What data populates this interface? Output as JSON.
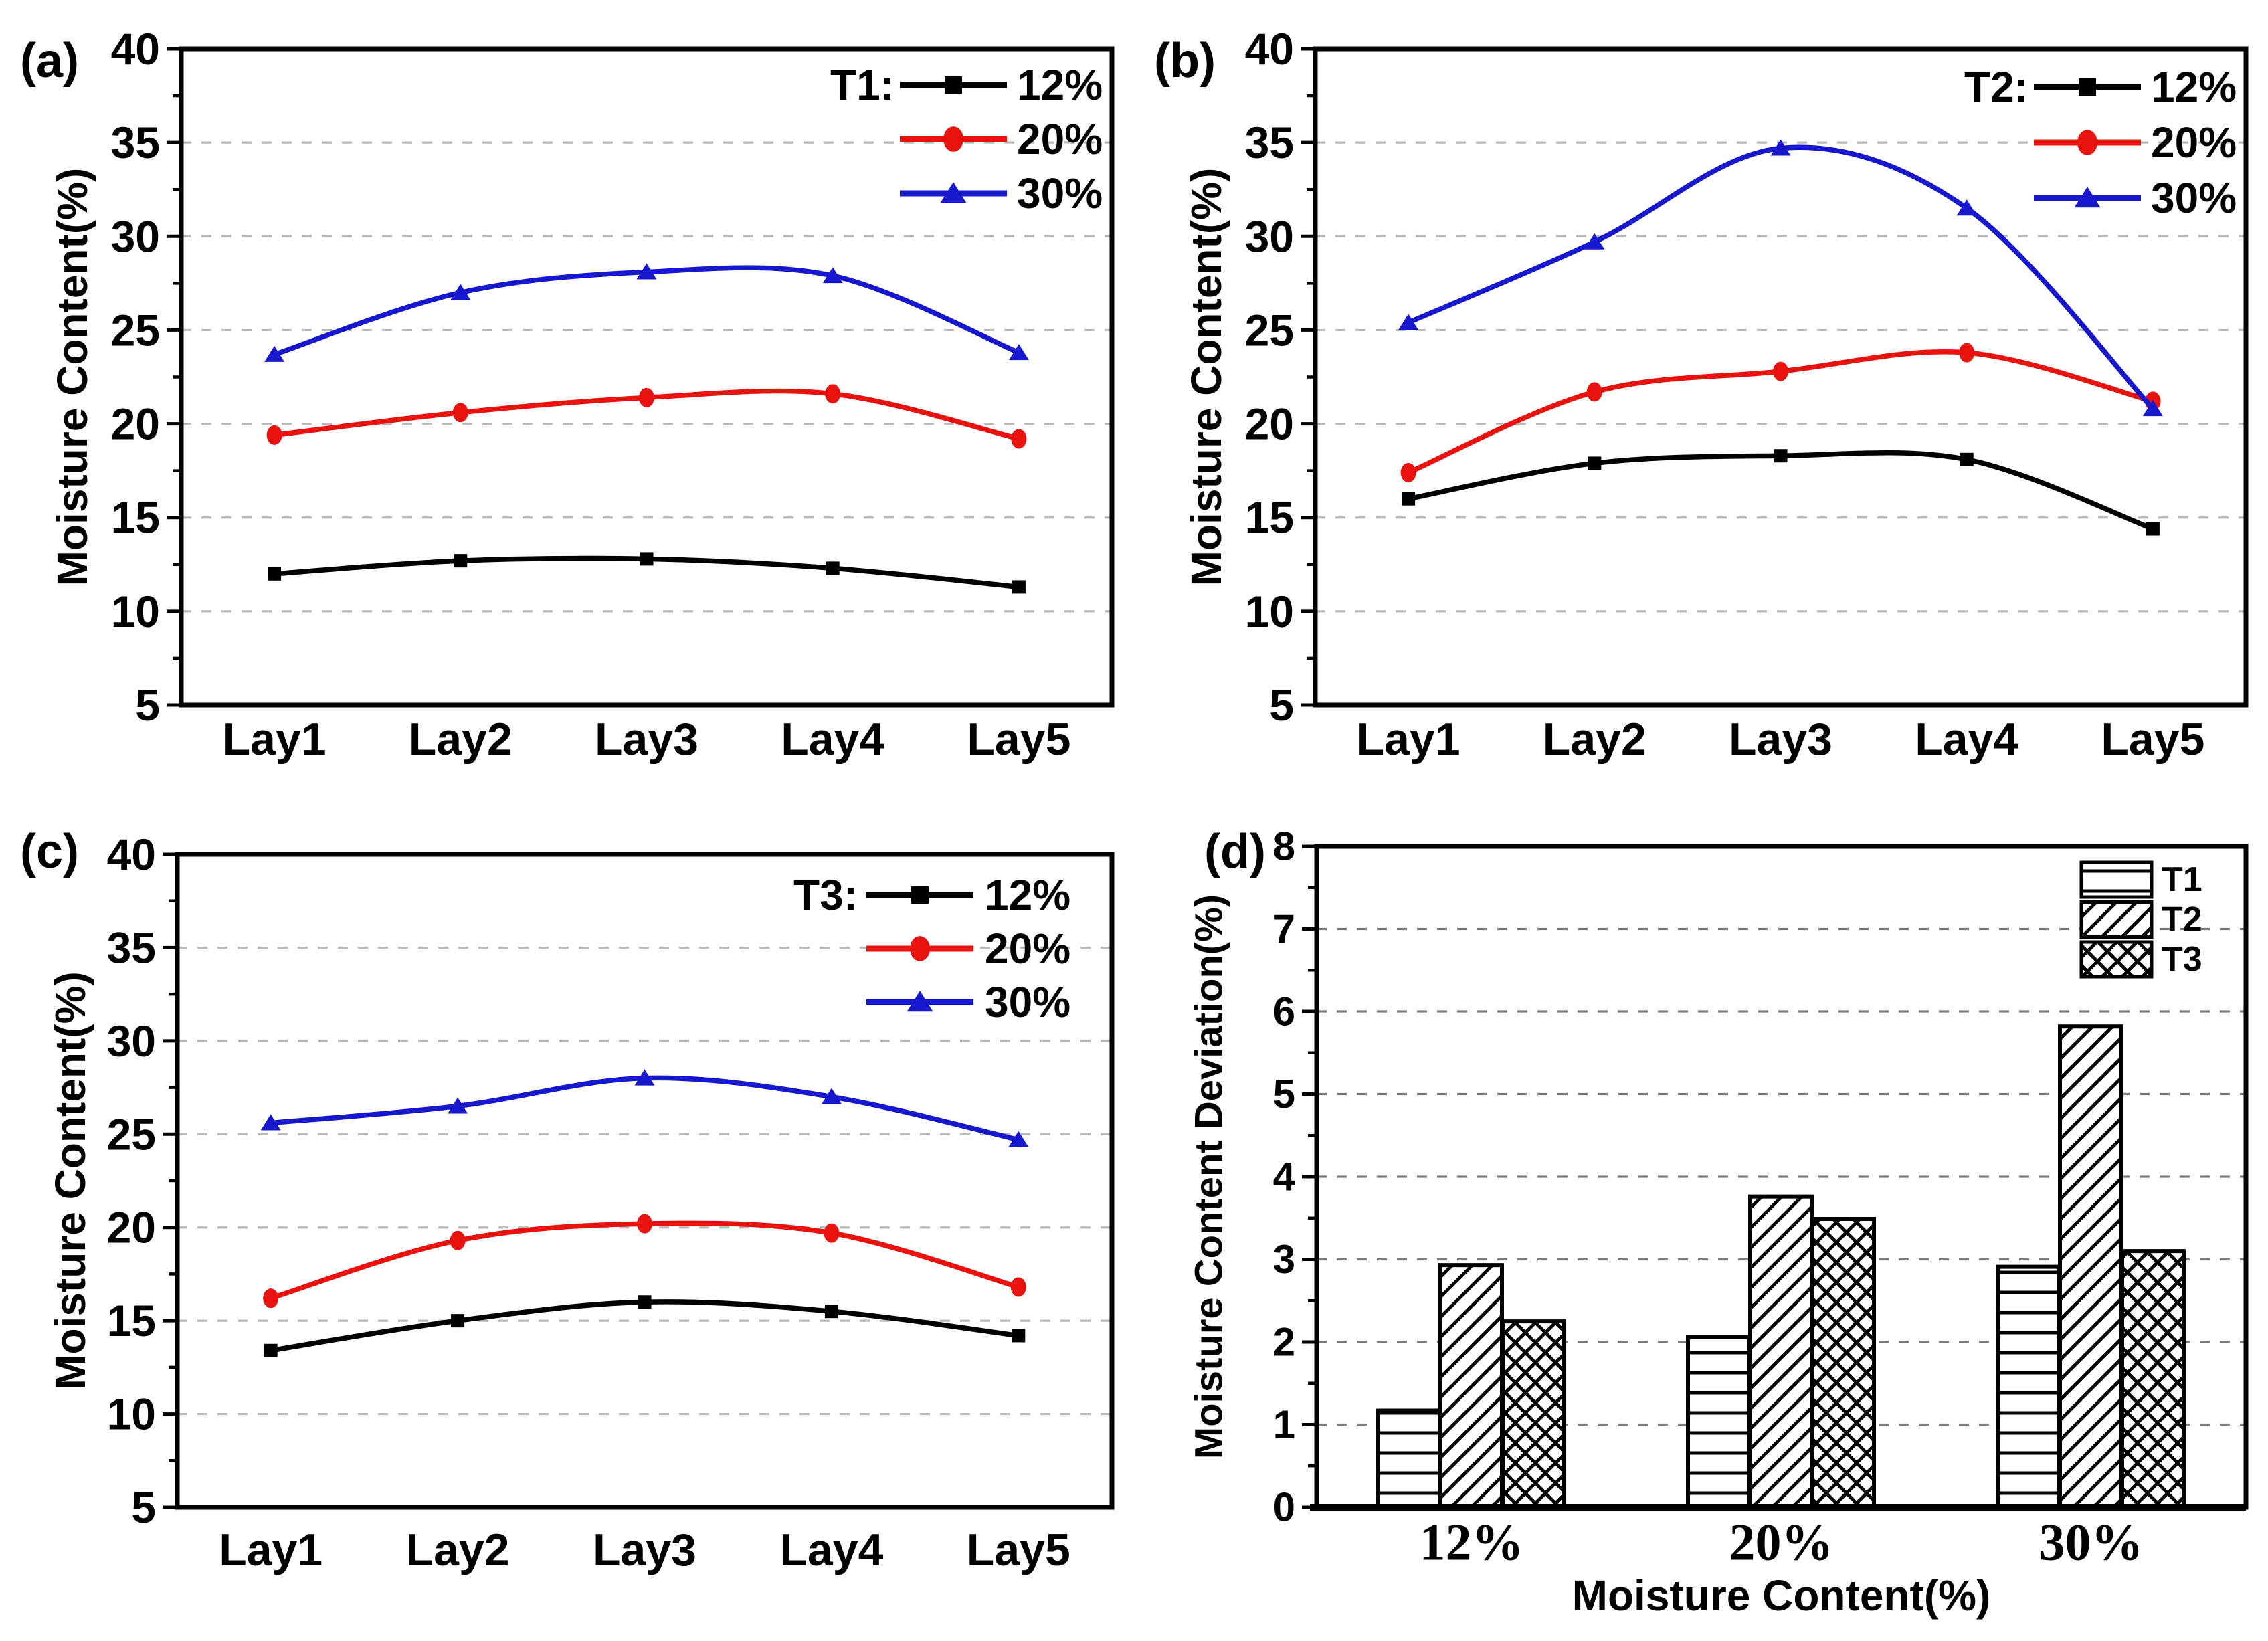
{
  "figure": {
    "background": "#ffffff",
    "grid_color_line_panels": "#b9b9b9",
    "grid_color_bar_panel": "#7d7d7d",
    "axis_color": "#000000"
  },
  "chart_data": [
    {
      "id": "a",
      "panel_label": "(a)",
      "type": "line",
      "ylabel": "Moisture Content(%)",
      "ylim": [
        5,
        40
      ],
      "yticks": [
        5,
        10,
        15,
        20,
        25,
        30,
        35,
        40
      ],
      "gridlines": [
        10,
        15,
        20,
        25,
        30,
        35
      ],
      "categories": [
        "Lay1",
        "Lay2",
        "Lay3",
        "Lay4",
        "Lay5"
      ],
      "legend_title": "T1:",
      "legend_position": "top-right",
      "series": [
        {
          "name": "12%",
          "marker": "square",
          "color": "#000000",
          "values": [
            12.0,
            12.7,
            12.8,
            12.3,
            11.3
          ]
        },
        {
          "name": "20%",
          "marker": "circle",
          "color": "#e8120e",
          "values": [
            19.4,
            20.6,
            21.4,
            21.6,
            19.2
          ]
        },
        {
          "name": "30%",
          "marker": "triangle",
          "color": "#1717cd",
          "values": [
            23.7,
            27.0,
            28.1,
            27.9,
            23.8
          ]
        }
      ]
    },
    {
      "id": "b",
      "panel_label": "(b)",
      "type": "line",
      "ylabel": "Moisture Content(%)",
      "ylim": [
        5,
        40
      ],
      "yticks": [
        5,
        10,
        15,
        20,
        25,
        30,
        35,
        40
      ],
      "gridlines": [
        10,
        15,
        20,
        25,
        30,
        35
      ],
      "categories": [
        "Lay1",
        "Lay2",
        "Lay3",
        "Lay4",
        "Lay5"
      ],
      "legend_title": "T2:",
      "legend_position": "top-right",
      "series": [
        {
          "name": "12%",
          "marker": "square",
          "color": "#000000",
          "values": [
            16.0,
            17.9,
            18.3,
            18.1,
            14.4
          ]
        },
        {
          "name": "20%",
          "marker": "circle",
          "color": "#e8120e",
          "values": [
            17.4,
            21.7,
            22.8,
            23.8,
            21.2
          ]
        },
        {
          "name": "30%",
          "marker": "triangle",
          "color": "#1717cd",
          "values": [
            25.4,
            29.7,
            34.7,
            31.5,
            20.8
          ]
        }
      ]
    },
    {
      "id": "c",
      "panel_label": "(c)",
      "type": "line",
      "ylabel": "Moisture Content(%)",
      "ylim": [
        5,
        40
      ],
      "yticks": [
        5,
        10,
        15,
        20,
        25,
        30,
        35,
        40
      ],
      "gridlines": [
        10,
        15,
        20,
        25,
        30,
        35
      ],
      "categories": [
        "Lay1",
        "Lay2",
        "Lay3",
        "Lay4",
        "Lay5"
      ],
      "legend_title": "T3:",
      "legend_position": "top-right",
      "series": [
        {
          "name": "12%",
          "marker": "square",
          "color": "#000000",
          "values": [
            13.4,
            15.0,
            16.0,
            15.5,
            14.2
          ]
        },
        {
          "name": "20%",
          "marker": "circle",
          "color": "#e8120e",
          "values": [
            16.2,
            19.3,
            20.2,
            19.7,
            16.8
          ]
        },
        {
          "name": "30%",
          "marker": "triangle",
          "color": "#1717cd",
          "values": [
            25.6,
            26.5,
            28.0,
            27.0,
            24.7
          ]
        }
      ]
    },
    {
      "id": "d",
      "panel_label": "(d)",
      "type": "bar",
      "ylabel": "Moisture Content Deviation(%)",
      "xlabel": "Moisture Content(%)",
      "ylim": [
        0,
        8
      ],
      "yticks": [
        0,
        1,
        2,
        3,
        4,
        5,
        6,
        7,
        8
      ],
      "gridlines": [
        1,
        2,
        3,
        4,
        5,
        6,
        7
      ],
      "categories": [
        "12%",
        "20%",
        "30%"
      ],
      "legend_position": "top-right",
      "series": [
        {
          "name": "T1",
          "hatch": "horizontal",
          "values": [
            1.17,
            2.06,
            2.91
          ]
        },
        {
          "name": "T2",
          "hatch": "diagonal",
          "values": [
            2.93,
            3.76,
            5.82
          ]
        },
        {
          "name": "T3",
          "hatch": "crosshatch",
          "values": [
            2.25,
            3.49,
            3.1
          ]
        }
      ]
    }
  ]
}
